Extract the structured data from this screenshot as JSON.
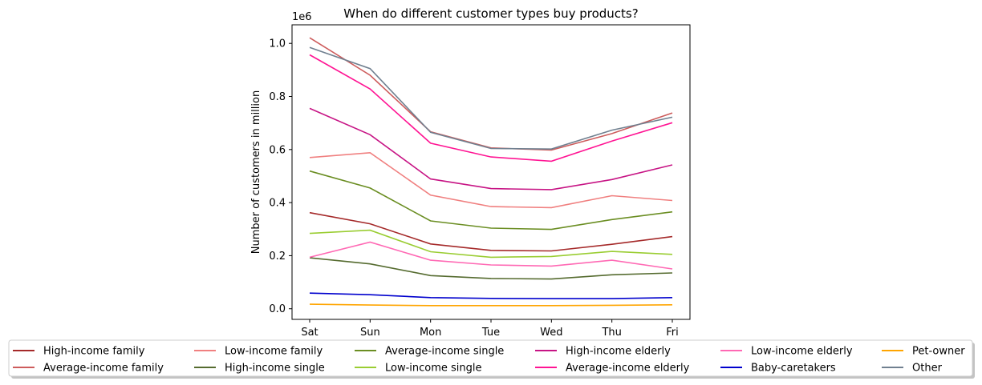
{
  "chart_data": {
    "type": "line",
    "title": "When do different customer types buy products?",
    "xlabel": "",
    "ylabel": "Number of customers in million",
    "y_offset_label": "1e6",
    "categories": [
      "Sat",
      "Sun",
      "Mon",
      "Tue",
      "Wed",
      "Thu",
      "Fri"
    ],
    "ylim": [
      -40000,
      1070000
    ],
    "yticks": [
      0,
      200000,
      400000,
      600000,
      800000,
      1000000
    ],
    "ytick_labels": [
      "0.0",
      "0.2",
      "0.4",
      "0.6",
      "0.8",
      "1.0"
    ],
    "grid": false,
    "legend_placement": "bottom-center, 6 columns",
    "series": [
      {
        "name": "High-income family",
        "color": "#a52a2a",
        "values": [
          362000,
          320000,
          244000,
          220000,
          218000,
          243000,
          272000
        ]
      },
      {
        "name": "Average-income family",
        "color": "#cd5c5c",
        "values": [
          1021000,
          880000,
          667000,
          606000,
          598000,
          660000,
          738000
        ]
      },
      {
        "name": "Low-income family",
        "color": "#f08080",
        "values": [
          570000,
          588000,
          428000,
          385000,
          381000,
          426000,
          408000
        ]
      },
      {
        "name": "High-income single",
        "color": "#556b2f",
        "values": [
          192000,
          169000,
          125000,
          114000,
          112000,
          128000,
          135000
        ]
      },
      {
        "name": "Average-income single",
        "color": "#6b8e23",
        "values": [
          519000,
          455000,
          331000,
          304000,
          299000,
          336000,
          365000
        ]
      },
      {
        "name": "Low-income single",
        "color": "#9acd32",
        "values": [
          284000,
          296000,
          215000,
          194000,
          197000,
          216000,
          205000
        ]
      },
      {
        "name": "High-income elderly",
        "color": "#c71585",
        "values": [
          755000,
          656000,
          489000,
          453000,
          449000,
          487000,
          542000
        ]
      },
      {
        "name": "Average-income elderly",
        "color": "#ff1493",
        "values": [
          957000,
          828000,
          624000,
          572000,
          556000,
          632000,
          701000
        ]
      },
      {
        "name": "Low-income elderly",
        "color": "#ff69b4",
        "values": [
          194000,
          251000,
          183000,
          165000,
          161000,
          183000,
          150000
        ]
      },
      {
        "name": "Baby-caretakers",
        "color": "#0000cd",
        "values": [
          59000,
          53000,
          42000,
          39000,
          38000,
          38000,
          42000
        ]
      },
      {
        "name": "Pet-owner",
        "color": "#ffa500",
        "values": [
          17000,
          14000,
          12000,
          12000,
          12000,
          13000,
          15000
        ]
      },
      {
        "name": "Other",
        "color": "#708090",
        "values": [
          985000,
          905000,
          665000,
          604000,
          602000,
          673000,
          722000
        ]
      }
    ]
  }
}
